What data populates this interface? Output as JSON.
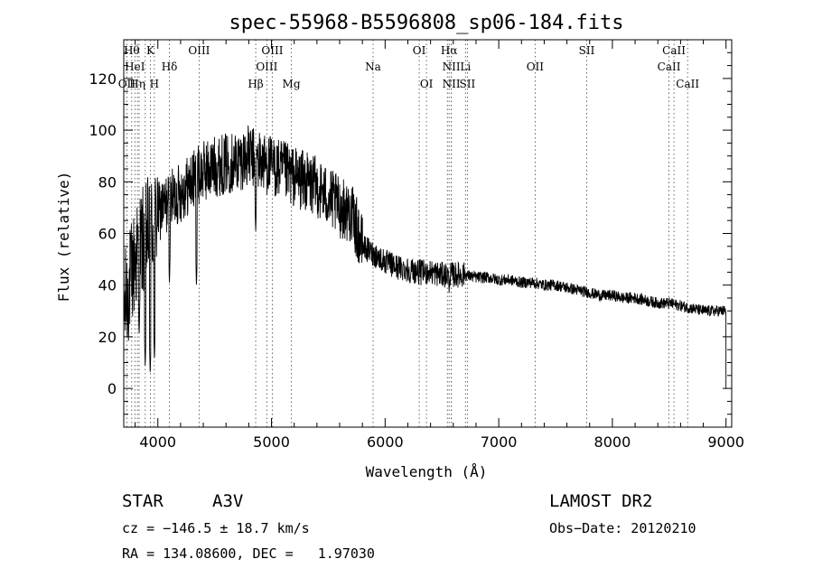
{
  "chart_data": {
    "type": "line",
    "title": "spec-55968-B5596808_sp06-184.fits",
    "xlabel": "Wavelength (Å)",
    "ylabel": "Flux (relative)",
    "xlim": [
      3700,
      9050
    ],
    "ylim": [
      -15,
      135
    ],
    "x_ticks": [
      4000,
      5000,
      6000,
      7000,
      8000,
      9000
    ],
    "y_ticks": [
      0,
      20,
      40,
      60,
      80,
      100,
      120
    ],
    "continuum_anchors": {
      "x": [
        3700,
        3750,
        3800,
        3850,
        3900,
        3950,
        4000,
        4100,
        4200,
        4300,
        4400,
        4500,
        4600,
        4700,
        4800,
        4900,
        5000,
        5100,
        5200,
        5300,
        5400,
        5500,
        5600,
        5700,
        5750,
        5800,
        5900,
        6000,
        6100,
        6200,
        6300,
        6400,
        6500,
        6600,
        6700,
        6800,
        6900,
        7000,
        7100,
        7200,
        7300,
        7400,
        7500,
        7600,
        7700,
        7800,
        7900,
        8000,
        8100,
        8200,
        8300,
        8400,
        8500,
        8600,
        8700,
        8800,
        8900,
        9000
      ],
      "y": [
        30,
        40,
        50,
        55,
        60,
        62,
        68,
        72,
        76,
        80,
        84,
        86,
        87,
        88,
        90,
        88,
        86,
        84,
        82,
        80,
        78,
        74,
        70,
        68,
        62,
        55,
        52,
        49,
        47,
        46,
        45,
        45,
        44,
        44,
        44,
        43,
        43,
        42,
        42,
        41,
        41,
        40,
        40,
        39,
        38,
        37,
        36,
        36,
        35,
        35,
        34,
        33,
        33,
        32,
        31,
        30,
        30,
        30
      ]
    },
    "noise_amplitude_note": "high noise below 5800 A, low noise redward",
    "absorption_features": [
      {
        "x": 3835,
        "y": 20
      },
      {
        "x": 3889,
        "y": 8
      },
      {
        "x": 3933,
        "y": 5
      },
      {
        "x": 3970,
        "y": 10
      },
      {
        "x": 4102,
        "y": 40
      },
      {
        "x": 4340,
        "y": 39
      },
      {
        "x": 4861,
        "y": 60
      },
      {
        "x": 6563,
        "y": 36
      }
    ],
    "line_markers": [
      {
        "x": 3727,
        "label": "OII",
        "row": 3
      },
      {
        "x": 3770,
        "label": "Hθ",
        "row": 1
      },
      {
        "x": 3798,
        "label": "HeI",
        "row": 2
      },
      {
        "x": 3820,
        "label": "Hη",
        "row": 3
      },
      {
        "x": 3835,
        "label": "",
        "row": 0
      },
      {
        "x": 3889,
        "label": "",
        "row": 0
      },
      {
        "x": 3934,
        "label": "K",
        "row": 1
      },
      {
        "x": 3969,
        "label": "H",
        "row": 3
      },
      {
        "x": 4102,
        "label": "Hδ",
        "row": 2
      },
      {
        "x": 4363,
        "label": "OIII",
        "row": 1
      },
      {
        "x": 4861,
        "label": "Hβ",
        "row": 3
      },
      {
        "x": 4959,
        "label": "OIII",
        "row": 2
      },
      {
        "x": 5007,
        "label": "OIII",
        "row": 1
      },
      {
        "x": 5175,
        "label": "Mg",
        "row": 3
      },
      {
        "x": 5894,
        "label": "Na",
        "row": 2
      },
      {
        "x": 6300,
        "label": "OI",
        "row": 1
      },
      {
        "x": 6364,
        "label": "OI",
        "row": 3
      },
      {
        "x": 6548,
        "label": "",
        "row": 0
      },
      {
        "x": 6563,
        "label": "Hα",
        "row": 1
      },
      {
        "x": 6583,
        "label": "NII",
        "row": 2
      },
      {
        "x": 6583,
        "label": "NII",
        "row": 3
      },
      {
        "x": 6707,
        "label": "Li",
        "row": 2
      },
      {
        "x": 6724,
        "label": "SII",
        "row": 3
      },
      {
        "x": 7320,
        "label": "OII",
        "row": 2
      },
      {
        "x": 7774,
        "label": "SII",
        "row": 1
      },
      {
        "x": 8498,
        "label": "CaII",
        "row": 2
      },
      {
        "x": 8542,
        "label": "CaII",
        "row": 1
      },
      {
        "x": 8662,
        "label": "CaII",
        "row": 3
      }
    ]
  },
  "info": {
    "class": "STAR",
    "subclass": "A3V",
    "survey": "LAMOST DR2",
    "cz": "cz = −146.5 ± 18.7 km/s",
    "obs_date": "Obs−Date: 20120210",
    "radec": "RA = 134.08600, DEC =   1.97030"
  }
}
